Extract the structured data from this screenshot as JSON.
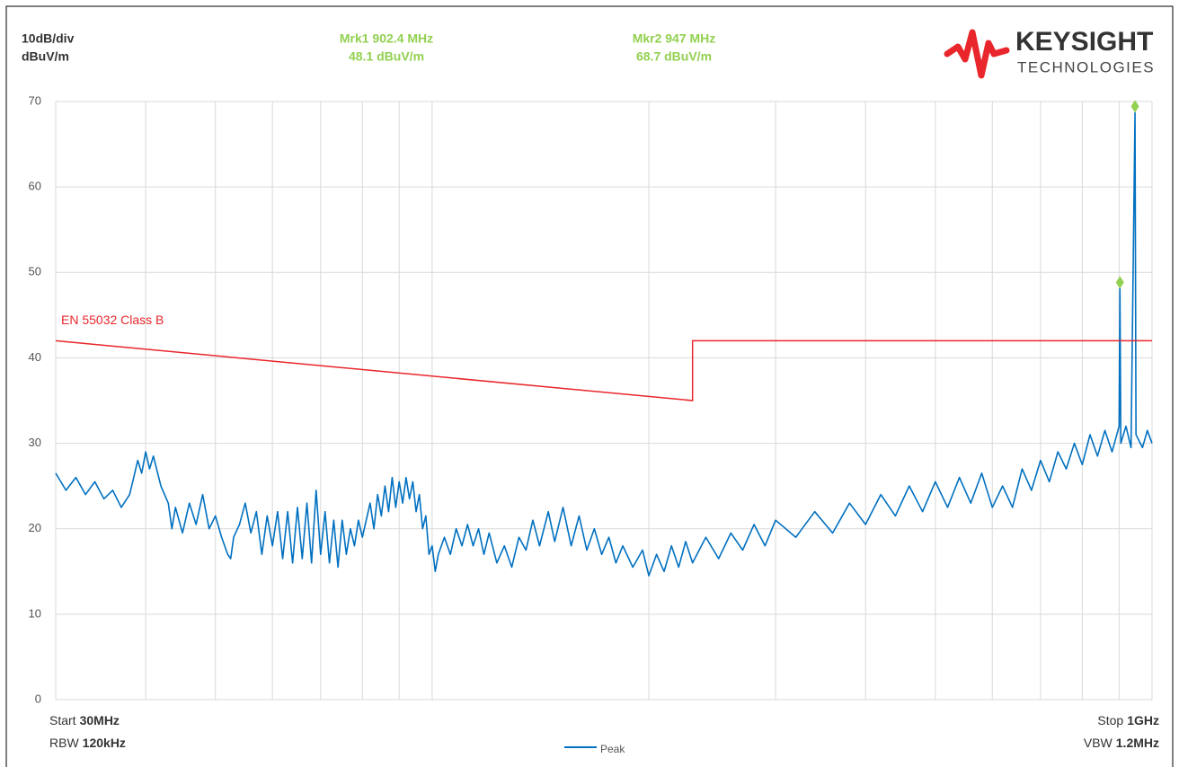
{
  "chart_data": {
    "type": "line",
    "header": {
      "scale": "10dB/div",
      "unit": "dBuV/m"
    },
    "markers": [
      {
        "label": "Mrk1 902.4 MHz",
        "value_label": "48.1 dBuV/m",
        "x": 902.4,
        "value": 48.1,
        "color": "#92d050"
      },
      {
        "label": "Mkr2 947 MHz",
        "value_label": "68.7 dBuV/m",
        "x": 947,
        "value": 68.7,
        "color": "#92d050"
      }
    ],
    "logo": {
      "name": "KEYSIGHT",
      "sub": "TECHNOLOGIES"
    },
    "footer": {
      "start": {
        "label": "Start",
        "value": "30MHz"
      },
      "rbw": {
        "label": "RBW",
        "value": "120kHz"
      },
      "stop": {
        "label": "Stop",
        "value": "1GHz"
      },
      "vbw": {
        "label": "VBW",
        "value": "1.2MHz"
      }
    },
    "log_x": true,
    "xlim": [
      30,
      1000
    ],
    "xticks": [
      30,
      40,
      50,
      60,
      70,
      80,
      90,
      100,
      200,
      300,
      400,
      500,
      600,
      700,
      800,
      900,
      1000
    ],
    "ylim": [
      0,
      70
    ],
    "yticks": [
      0,
      10,
      20,
      30,
      40,
      50,
      60,
      70
    ],
    "grid": true,
    "legend": "bottom",
    "limit_line": {
      "name": "EN 55032 Class B",
      "color": "#e8262b",
      "x": [
        30,
        230,
        230,
        1000
      ],
      "values": [
        42,
        35,
        42,
        42
      ]
    },
    "series": [
      {
        "name": "Peak",
        "color": "#0070c0",
        "x": [
          30,
          31,
          32,
          33,
          34,
          35,
          36,
          37,
          38,
          38.5,
          39,
          39.5,
          40,
          40.5,
          41,
          42,
          43,
          43.5,
          44,
          45,
          46,
          47,
          48,
          49,
          50,
          51,
          52,
          52.5,
          53,
          54,
          55,
          56,
          57,
          58,
          59,
          60,
          61,
          62,
          63,
          64,
          65,
          66,
          67,
          68,
          69,
          70,
          71,
          72,
          73,
          74,
          75,
          76,
          77,
          78,
          79,
          80,
          82,
          83,
          84,
          85,
          86,
          87,
          88,
          89,
          90,
          91,
          92,
          93,
          94,
          95,
          96,
          97,
          98,
          99,
          100,
          101,
          102,
          104,
          106,
          108,
          110,
          112,
          114,
          116,
          118,
          120,
          123,
          126,
          129,
          132,
          135,
          138,
          141,
          145,
          148,
          152,
          156,
          160,
          164,
          168,
          172,
          176,
          180,
          184,
          190,
          196,
          200,
          205,
          210,
          215,
          220,
          225,
          230,
          240,
          250,
          260,
          270,
          280,
          290,
          300,
          320,
          340,
          360,
          380,
          400,
          420,
          440,
          460,
          480,
          500,
          520,
          540,
          560,
          580,
          600,
          620,
          640,
          660,
          680,
          700,
          720,
          740,
          760,
          780,
          800,
          820,
          840,
          860,
          880,
          900,
          902.4,
          905,
          920,
          935,
          947,
          950,
          970,
          985,
          1000
        ],
        "values": [
          26.5,
          24.5,
          26,
          24,
          25.5,
          23.5,
          24.5,
          22.5,
          24,
          26,
          28,
          26.5,
          29,
          27,
          28.5,
          25,
          23,
          20,
          22.5,
          19.5,
          23,
          20.5,
          24,
          20,
          21.5,
          19,
          17,
          16.5,
          19,
          20.5,
          23,
          19.5,
          22,
          17,
          21.5,
          18,
          22,
          16.5,
          22,
          16,
          22.5,
          16.5,
          23,
          16,
          24.5,
          17,
          22,
          16,
          21,
          15.5,
          21,
          17,
          20,
          18,
          21,
          19,
          23,
          20,
          24,
          21.5,
          25,
          22,
          26,
          22.5,
          25.5,
          23,
          26,
          23.5,
          25.5,
          22,
          24,
          20,
          21.5,
          17,
          18,
          15,
          17,
          19,
          17,
          20,
          18,
          20.5,
          18,
          20,
          17,
          19.5,
          16,
          18,
          15.5,
          19,
          17.5,
          21,
          18,
          22,
          18.5,
          22.5,
          18,
          21.5,
          17.5,
          20,
          17,
          19,
          16,
          18,
          15.5,
          17.5,
          14.5,
          17,
          15,
          18,
          15.5,
          18.5,
          16,
          19,
          16.5,
          19.5,
          17.5,
          20.5,
          18,
          21,
          19,
          22,
          19.5,
          23,
          20.5,
          24,
          21.5,
          25,
          22,
          25.5,
          22.5,
          26,
          23,
          26.5,
          22.5,
          25,
          22.5,
          27,
          24.5,
          28,
          25.5,
          29,
          27,
          30,
          27.5,
          31,
          28.5,
          31.5,
          29,
          32,
          48.1,
          30,
          32,
          29.5,
          68.7,
          31,
          29.5,
          31.5,
          30
        ]
      }
    ]
  }
}
